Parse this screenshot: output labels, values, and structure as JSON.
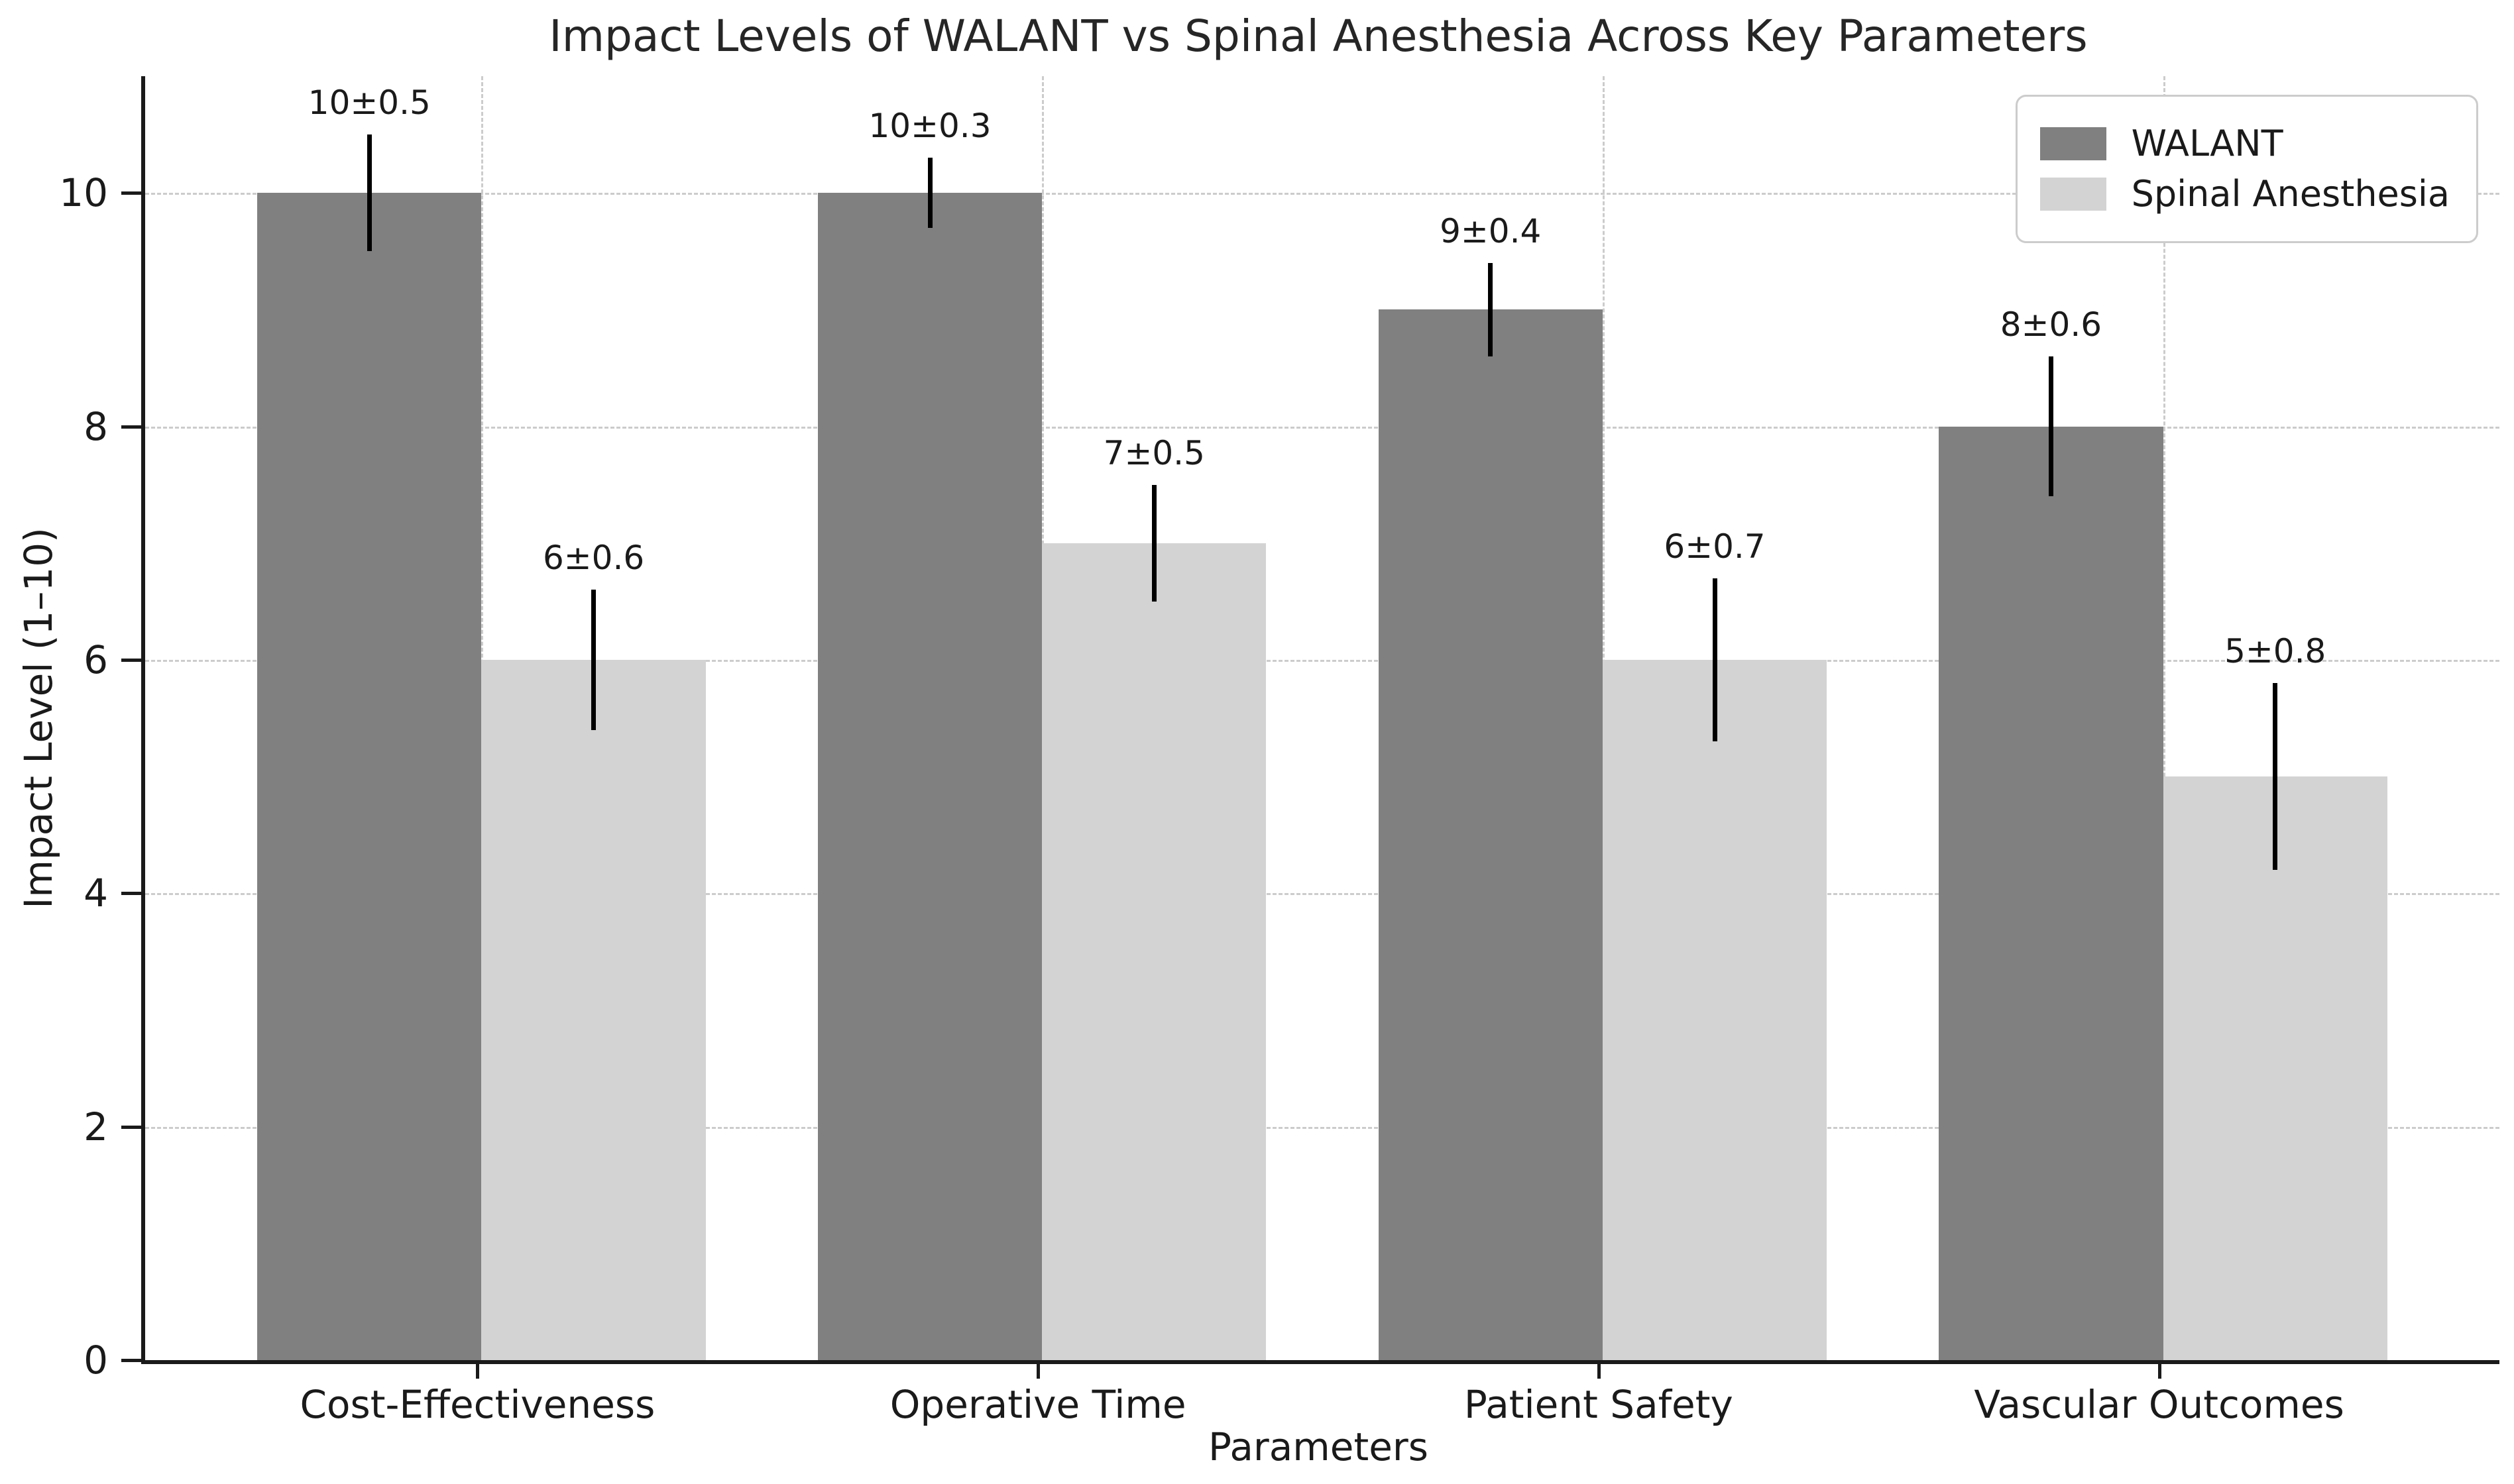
{
  "chart_data": {
    "type": "bar",
    "title": "Impact Levels of WALANT vs Spinal Anesthesia Across Key Parameters",
    "xlabel": "Parameters",
    "ylabel": "Impact Level (1–10)",
    "categories": [
      "Cost-Effectiveness",
      "Operative Time",
      "Patient Safety",
      "Vascular Outcomes"
    ],
    "series": [
      {
        "name": "WALANT",
        "color": "#808080",
        "values": [
          10,
          10,
          9,
          8
        ],
        "errors": [
          0.5,
          0.3,
          0.4,
          0.6
        ],
        "labels": [
          "10±0.5",
          "10±0.3",
          "9±0.4",
          "8±0.6"
        ]
      },
      {
        "name": "Spinal Anesthesia",
        "color": "#d3d3d3",
        "values": [
          6,
          7,
          6,
          5
        ],
        "errors": [
          0.6,
          0.5,
          0.7,
          0.8
        ],
        "labels": [
          "6±0.6",
          "7±0.5",
          "6±0.7",
          "5±0.8"
        ]
      }
    ],
    "bar_width": 0.4,
    "ylim": [
      0,
      11
    ],
    "yticks": [
      0,
      2,
      4,
      6,
      8,
      10
    ],
    "grid": "dashed, both axes",
    "legend_position": "upper right",
    "error_bar_color": "#000000",
    "grid_color": "#cccccc",
    "axis_color": "#1a1a1a"
  }
}
